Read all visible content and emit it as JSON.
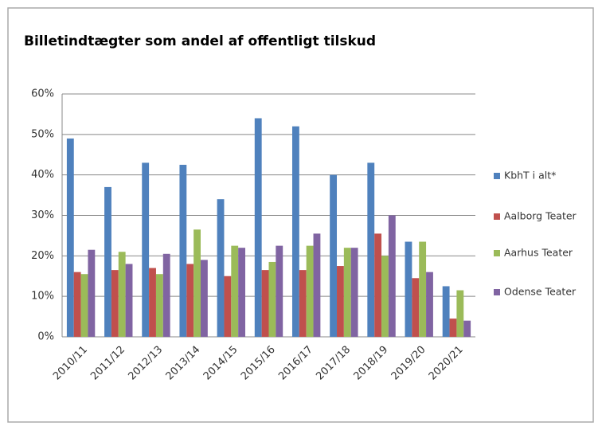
{
  "chart_data": {
    "type": "bar",
    "title": "Billetindtægter som andel af offentligt tilskud",
    "categories": [
      "2010/11",
      "2011/12",
      "2012/13",
      "2013/14",
      "2014/15",
      "2015/16",
      "2016/17",
      "2017/18",
      "2018/19",
      "2019/20",
      "2020/21"
    ],
    "series": [
      {
        "name": "KbhT i alt*",
        "color": "#4f81bd",
        "values": [
          49,
          37,
          43,
          42.5,
          34,
          54,
          52,
          40,
          43,
          23.5,
          12.5
        ]
      },
      {
        "name": "Aalborg Teater",
        "color": "#c0504d",
        "values": [
          16,
          16.5,
          17,
          18,
          15,
          16.5,
          16.5,
          17.5,
          25.5,
          14.5,
          4.5
        ]
      },
      {
        "name": "Aarhus Teater",
        "color": "#9bbb59",
        "values": [
          15.5,
          21,
          15.5,
          26.5,
          22.5,
          18.5,
          22.5,
          22,
          20,
          23.5,
          11.5
        ]
      },
      {
        "name": "Odense Teater",
        "color": "#8064a2",
        "values": [
          21.5,
          18,
          20.5,
          19,
          22,
          22.5,
          25.5,
          22,
          30,
          16,
          4
        ]
      }
    ],
    "ylim": [
      0,
      60
    ],
    "yticks": [
      {
        "value": 0,
        "label": "0%"
      },
      {
        "value": 10,
        "label": "10%"
      },
      {
        "value": 20,
        "label": "20%"
      },
      {
        "value": 30,
        "label": "30%"
      },
      {
        "value": 40,
        "label": "40%"
      },
      {
        "value": 50,
        "label": "50%"
      },
      {
        "value": 60,
        "label": "60%"
      }
    ],
    "grid": true,
    "legend": "right"
  }
}
